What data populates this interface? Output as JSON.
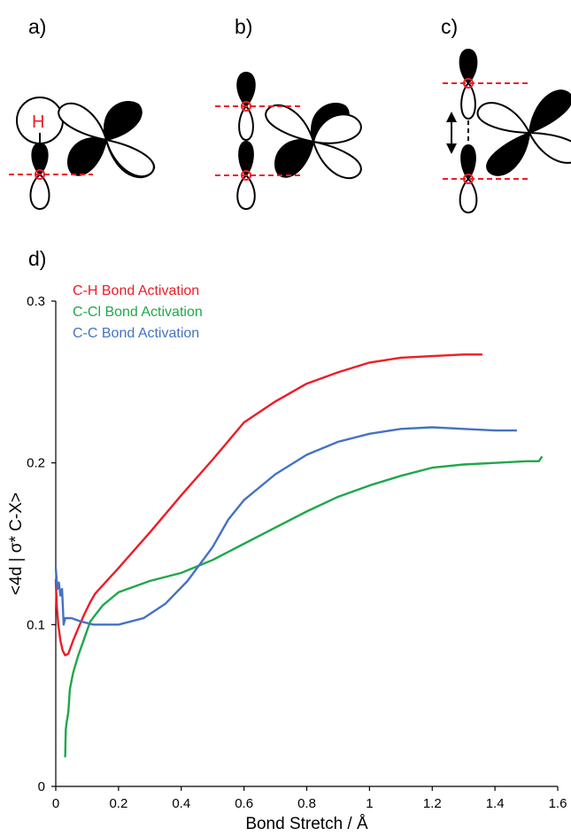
{
  "panels": {
    "a": {
      "label": "a)",
      "atom_label": "H"
    },
    "b": {
      "label": "b)"
    },
    "c": {
      "label": "c)"
    },
    "d": {
      "label": "d)"
    }
  },
  "colors": {
    "ch": "#ee1c25",
    "ccl": "#1fa84a",
    "cc": "#4472c4",
    "guide": "#ee1c25",
    "lobe": "#000000"
  },
  "chart_data": {
    "type": "line",
    "xlabel": "Bond Stretch / Å",
    "ylabel": "<4d | σ* C-X>",
    "xlim": [
      0,
      1.6
    ],
    "ylim": [
      0,
      0.3
    ],
    "xticks": [
      "0",
      "0.2",
      "0.4",
      "0.6",
      "0.8",
      "1",
      "1.2",
      "1.4",
      "1.6"
    ],
    "yticks": [
      "0",
      "0.1",
      "0.2",
      "0.3"
    ],
    "grid": false,
    "legend_position": "top-left",
    "series": [
      {
        "name": "C-H Bond Activation",
        "color": "#ee1c25",
        "points": [
          [
            0.0,
            0.128
          ],
          [
            0.003,
            0.112
          ],
          [
            0.008,
            0.1
          ],
          [
            0.015,
            0.09
          ],
          [
            0.022,
            0.084
          ],
          [
            0.03,
            0.081
          ],
          [
            0.04,
            0.082
          ],
          [
            0.055,
            0.09
          ],
          [
            0.07,
            0.097
          ],
          [
            0.09,
            0.106
          ],
          [
            0.11,
            0.114
          ],
          [
            0.125,
            0.119
          ],
          [
            0.2,
            0.135
          ],
          [
            0.3,
            0.157
          ],
          [
            0.4,
            0.18
          ],
          [
            0.5,
            0.202
          ],
          [
            0.6,
            0.225
          ],
          [
            0.7,
            0.238
          ],
          [
            0.8,
            0.249
          ],
          [
            0.9,
            0.256
          ],
          [
            1.0,
            0.262
          ],
          [
            1.1,
            0.265
          ],
          [
            1.2,
            0.266
          ],
          [
            1.3,
            0.267
          ],
          [
            1.36,
            0.267
          ]
        ]
      },
      {
        "name": "C-Cl Bond Activation",
        "color": "#1fa84a",
        "points": [
          [
            0.03,
            0.018
          ],
          [
            0.032,
            0.035
          ],
          [
            0.035,
            0.04
          ],
          [
            0.04,
            0.046
          ],
          [
            0.045,
            0.06
          ],
          [
            0.055,
            0.07
          ],
          [
            0.07,
            0.08
          ],
          [
            0.09,
            0.091
          ],
          [
            0.11,
            0.102
          ],
          [
            0.15,
            0.112
          ],
          [
            0.2,
            0.12
          ],
          [
            0.3,
            0.127
          ],
          [
            0.4,
            0.132
          ],
          [
            0.5,
            0.14
          ],
          [
            0.6,
            0.15
          ],
          [
            0.7,
            0.16
          ],
          [
            0.8,
            0.17
          ],
          [
            0.9,
            0.179
          ],
          [
            1.0,
            0.186
          ],
          [
            1.1,
            0.192
          ],
          [
            1.2,
            0.197
          ],
          [
            1.3,
            0.199
          ],
          [
            1.4,
            0.2
          ],
          [
            1.5,
            0.201
          ],
          [
            1.54,
            0.201
          ],
          [
            1.55,
            0.204
          ]
        ]
      },
      {
        "name": "C-C Bond Activation",
        "color": "#4472c4",
        "points": [
          [
            0.0,
            0.135
          ],
          [
            0.005,
            0.122
          ],
          [
            0.01,
            0.126
          ],
          [
            0.015,
            0.118
          ],
          [
            0.02,
            0.122
          ],
          [
            0.025,
            0.1
          ],
          [
            0.03,
            0.104
          ],
          [
            0.05,
            0.104
          ],
          [
            0.08,
            0.102
          ],
          [
            0.12,
            0.1
          ],
          [
            0.2,
            0.1
          ],
          [
            0.28,
            0.104
          ],
          [
            0.35,
            0.113
          ],
          [
            0.42,
            0.127
          ],
          [
            0.5,
            0.148
          ],
          [
            0.55,
            0.165
          ],
          [
            0.6,
            0.177
          ],
          [
            0.7,
            0.193
          ],
          [
            0.8,
            0.205
          ],
          [
            0.9,
            0.213
          ],
          [
            1.0,
            0.218
          ],
          [
            1.1,
            0.221
          ],
          [
            1.2,
            0.222
          ],
          [
            1.3,
            0.221
          ],
          [
            1.4,
            0.22
          ],
          [
            1.47,
            0.22
          ]
        ]
      }
    ]
  }
}
